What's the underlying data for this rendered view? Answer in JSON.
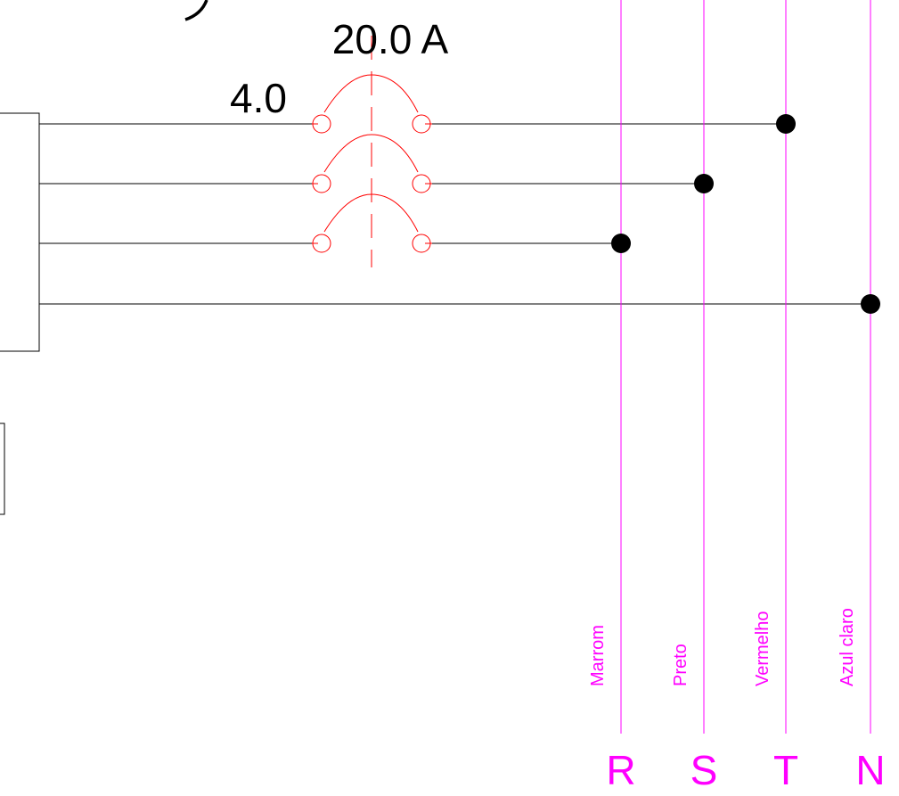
{
  "breaker": {
    "rating_label": "20.0 A",
    "section_label": "4.0",
    "color": "#ff0000"
  },
  "bus_lines": [
    {
      "id": "R",
      "phase_label": "R",
      "wire_color_name": "Marrom"
    },
    {
      "id": "S",
      "phase_label": "S",
      "wire_color_name": "Preto"
    },
    {
      "id": "T",
      "phase_label": "T",
      "wire_color_name": "Vermelho"
    },
    {
      "id": "N",
      "phase_label": "N",
      "wire_color_name": "Azul claro"
    }
  ],
  "colors": {
    "bus": "#ff00ff",
    "wire": "#000000",
    "breaker": "#ff0000"
  }
}
